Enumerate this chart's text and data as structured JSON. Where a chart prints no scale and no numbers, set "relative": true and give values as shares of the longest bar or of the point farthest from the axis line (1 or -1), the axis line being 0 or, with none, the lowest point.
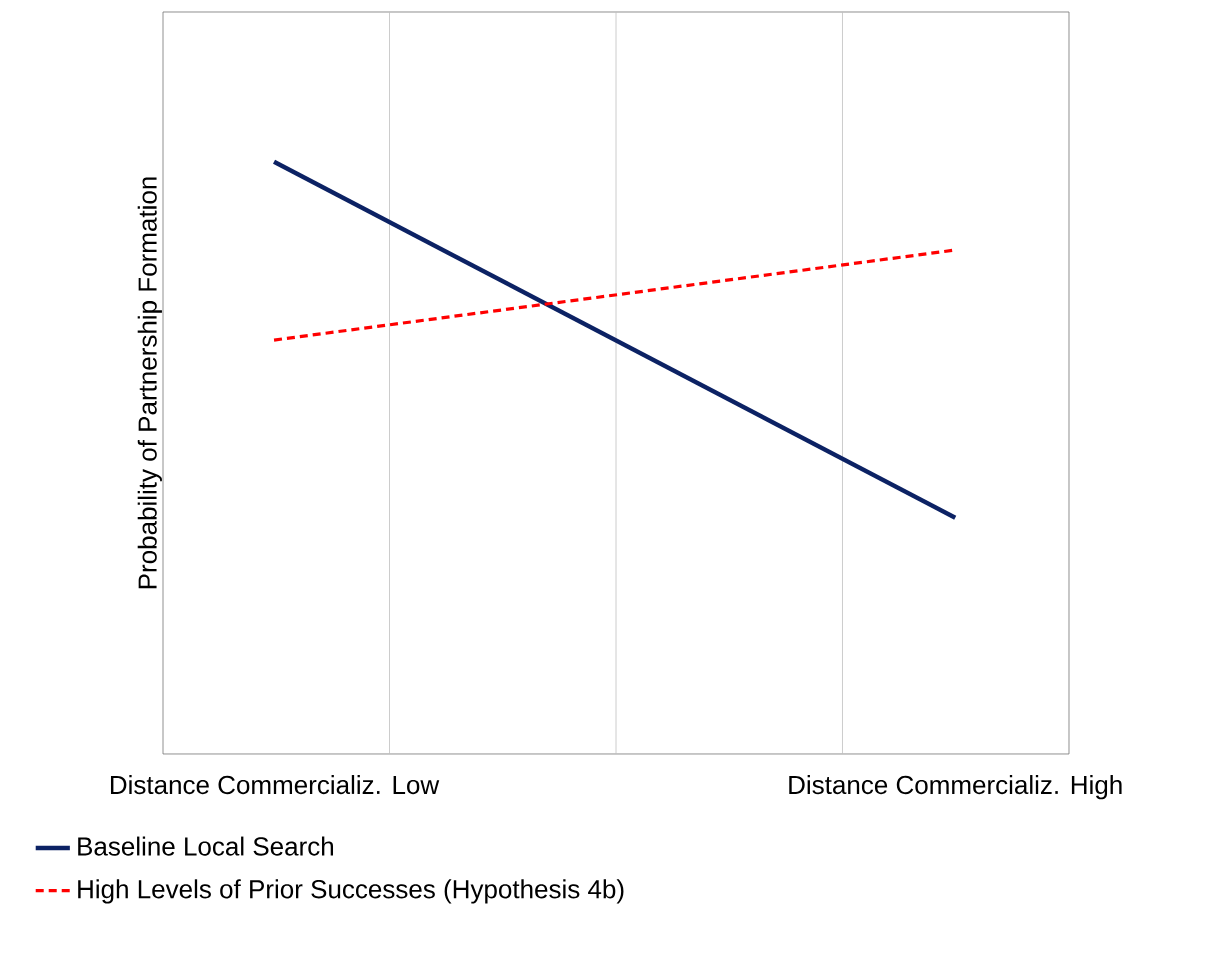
{
  "chart_data": {
    "type": "line",
    "relative": true,
    "ylabel": "Probability of Partnership Formation",
    "categories": [
      "Distance Commercializ. Low",
      "Distance Commercializ. High"
    ],
    "series": [
      {
        "name": "Baseline Local Search",
        "color": "#0c2264",
        "values": [
          1,
          0.399
        ],
        "line_style": "solid"
      },
      {
        "name": "High Levels of Prior Successes (Hypothesis 4b)",
        "color": "#ff0000",
        "values": [
          0.699,
          0.851
        ],
        "line_style": "dashed"
      }
    ],
    "grid": "x",
    "legend": "bottom"
  }
}
